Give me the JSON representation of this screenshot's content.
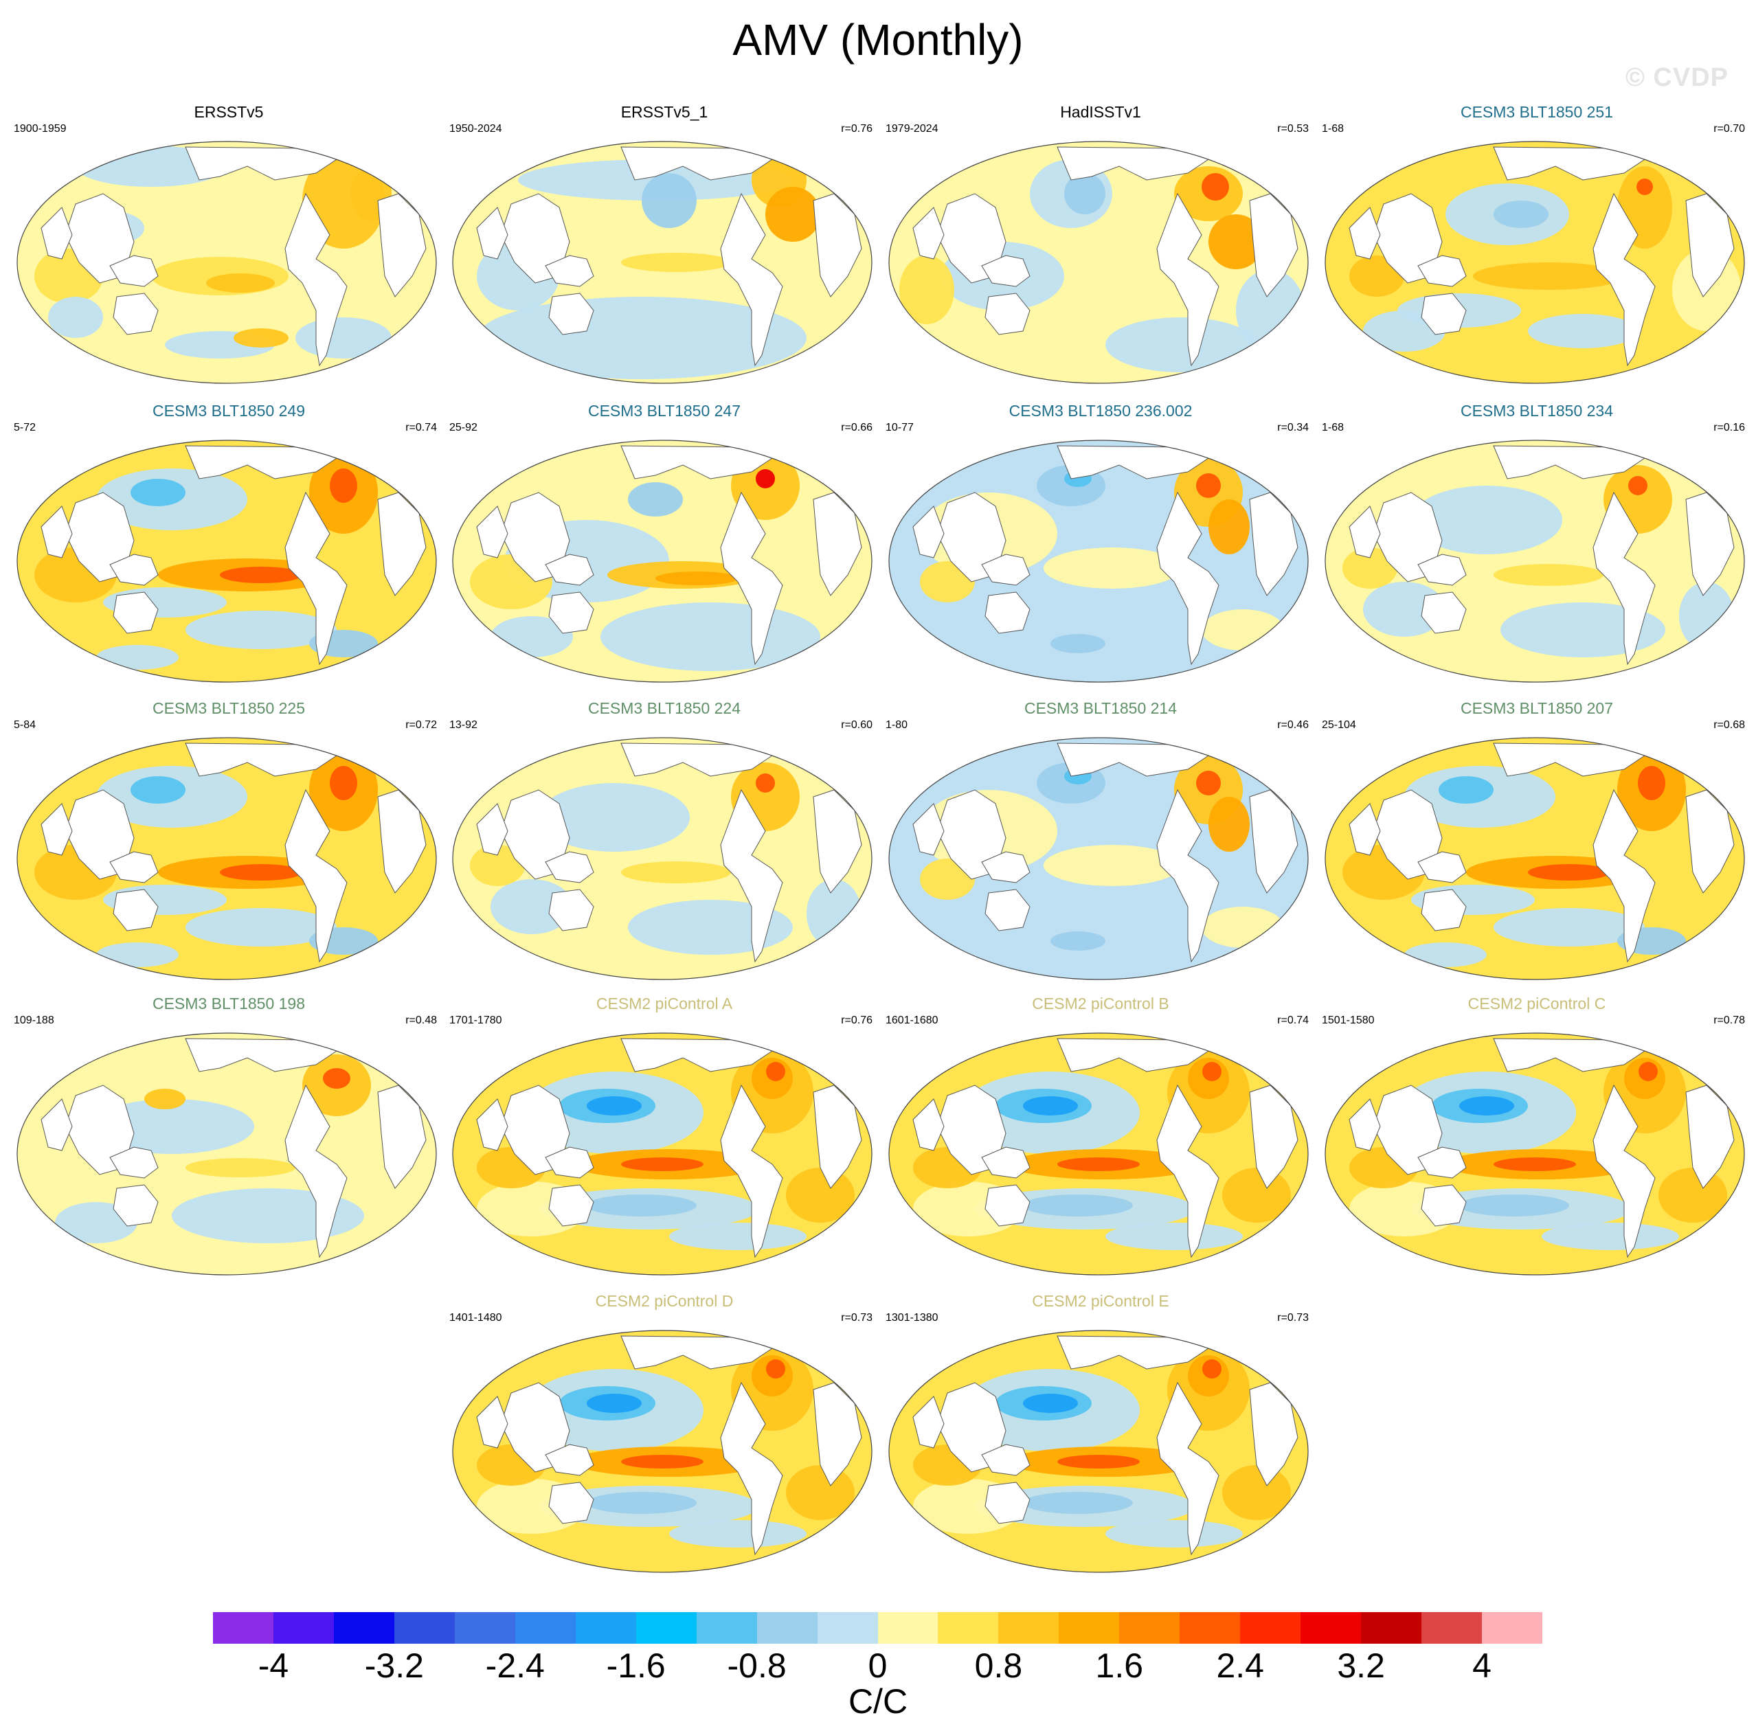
{
  "figure": {
    "title": "AMV (Monthly)",
    "watermark": "© CVDP",
    "units": "C/C"
  },
  "panels": [
    {
      "name": "ERSSTv5",
      "years": "1900-1959",
      "corr": "",
      "color": "#000000",
      "style": "obs1"
    },
    {
      "name": "ERSSTv5_1",
      "years": "1950-2024",
      "corr": "r=0.76",
      "color": "#000000",
      "style": "obs2"
    },
    {
      "name": "HadISSTv1",
      "years": "1979-2024",
      "corr": "r=0.53",
      "color": "#000000",
      "style": "obs3"
    },
    {
      "name": "CESM3 BLT1850 251",
      "years": "1-68",
      "corr": "r=0.70",
      "color": "#1e6e8c",
      "style": "m1"
    },
    {
      "name": "CESM3 BLT1850 249",
      "years": "5-72",
      "corr": "r=0.74",
      "color": "#1e6e8c",
      "style": "m2"
    },
    {
      "name": "CESM3 BLT1850 247",
      "years": "25-92",
      "corr": "r=0.66",
      "color": "#1e6e8c",
      "style": "m3"
    },
    {
      "name": "CESM3 BLT1850 236.002",
      "years": "10-77",
      "corr": "r=0.34",
      "color": "#1e6e8c",
      "style": "m4"
    },
    {
      "name": "CESM3 BLT1850 234",
      "years": "1-68",
      "corr": "r=0.16",
      "color": "#1e6e8c",
      "style": "m5"
    },
    {
      "name": "CESM3 BLT1850 225",
      "years": "5-84",
      "corr": "r=0.72",
      "color": "#5f8f67",
      "style": "m2"
    },
    {
      "name": "CESM3 BLT1850 224",
      "years": "13-92",
      "corr": "r=0.60",
      "color": "#5f8f67",
      "style": "m5"
    },
    {
      "name": "CESM3 BLT1850 214",
      "years": "1-80",
      "corr": "r=0.46",
      "color": "#5f8f67",
      "style": "m4"
    },
    {
      "name": "CESM3 BLT1850 207",
      "years": "25-104",
      "corr": "r=0.68",
      "color": "#5f8f67",
      "style": "m2"
    },
    {
      "name": "CESM3 BLT1850 198",
      "years": "109-188",
      "corr": "r=0.48",
      "color": "#5f8f67",
      "style": "m6"
    },
    {
      "name": "CESM2 piControl A",
      "years": "1701-1780",
      "corr": "r=0.76",
      "color": "#c8be78",
      "style": "pc"
    },
    {
      "name": "CESM2 piControl B",
      "years": "1601-1680",
      "corr": "r=0.74",
      "color": "#c8be78",
      "style": "pc"
    },
    {
      "name": "CESM2 piControl C",
      "years": "1501-1580",
      "corr": "r=0.78",
      "color": "#c8be78",
      "style": "pc"
    },
    {
      "name": "CESM2 piControl D",
      "years": "1401-1480",
      "corr": "r=0.73",
      "color": "#c8be78",
      "style": "pc"
    },
    {
      "name": "CESM2 piControl E",
      "years": "1301-1380",
      "corr": "r=0.73",
      "color": "#c8be78",
      "style": "pc"
    }
  ],
  "colorbar": {
    "colors": [
      "#8a2be8",
      "#4b16f0",
      "#0a0aee",
      "#2e4fe0",
      "#3c6fe6",
      "#2f86ef",
      "#1ba1f5",
      "#00bff9",
      "#56c3f0",
      "#9ccfec",
      "#bfe0f2",
      "#fff8a6",
      "#ffe34f",
      "#ffc61f",
      "#ffaa00",
      "#ff8800",
      "#ff5a00",
      "#ff2a00",
      "#ee0000",
      "#c40000",
      "#dd4444",
      "#ffb0b6"
    ],
    "ticks": [
      "-4",
      "-3.2",
      "-2.4",
      "-1.6",
      "-0.8",
      "0",
      "0.8",
      "1.6",
      "2.4",
      "3.2",
      "4"
    ]
  }
}
